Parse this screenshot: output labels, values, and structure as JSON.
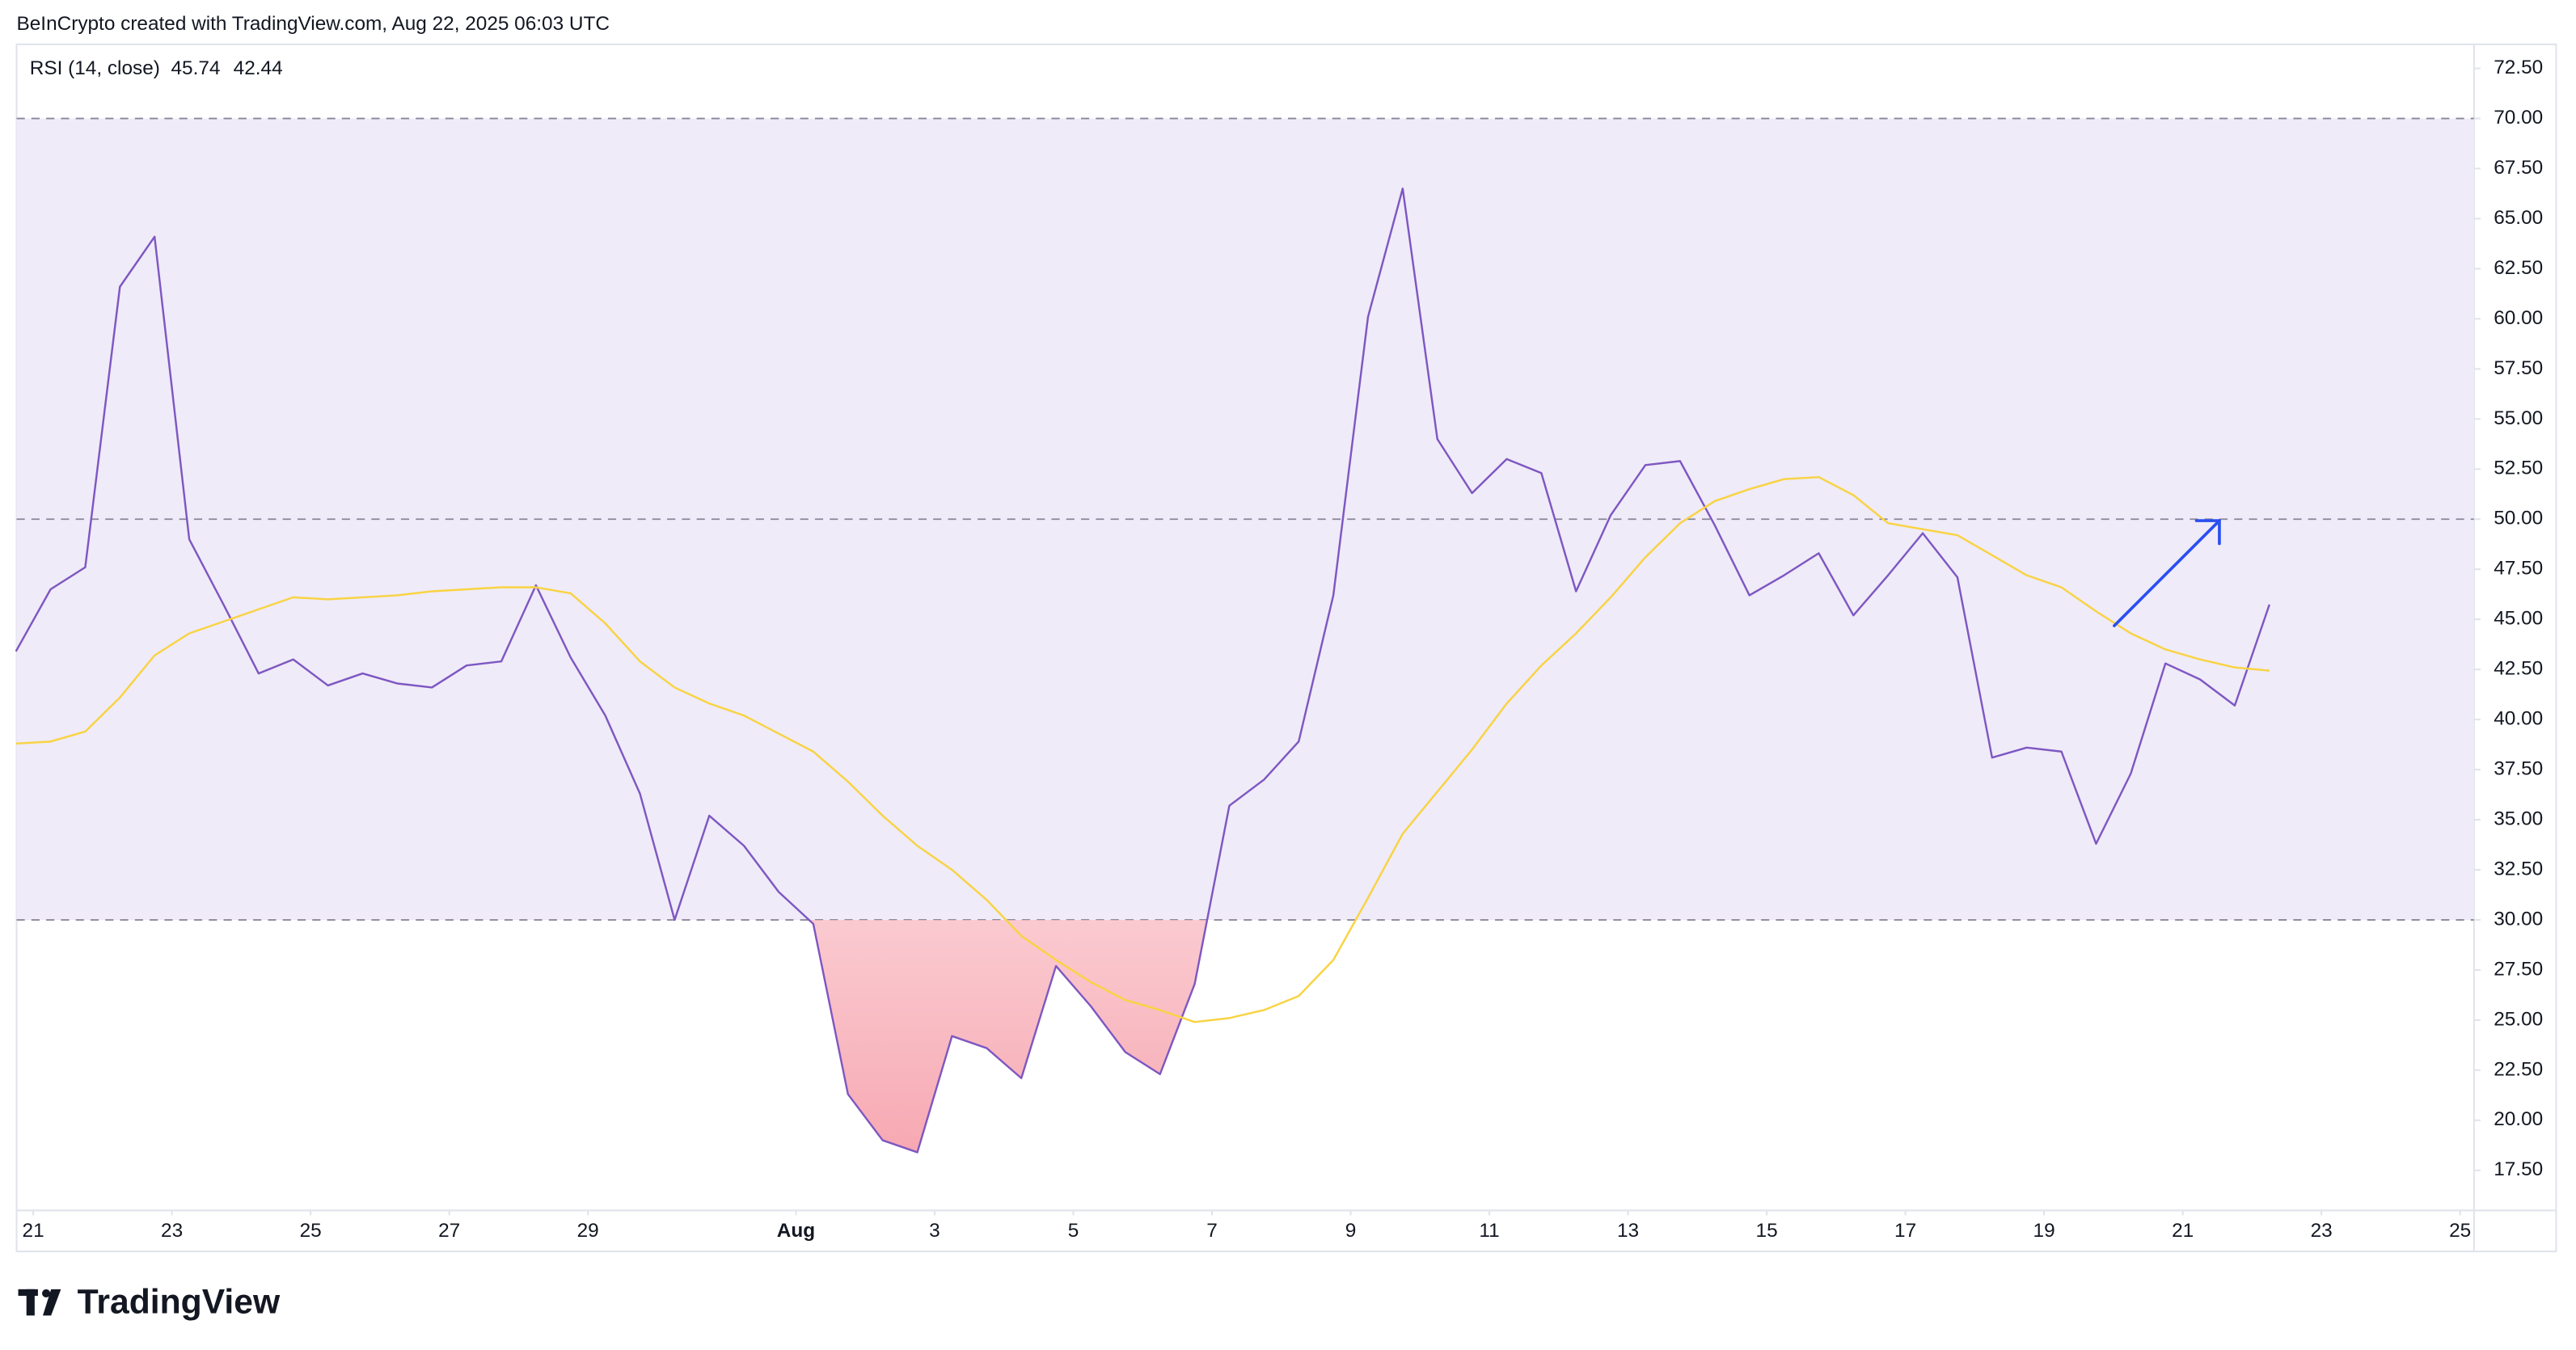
{
  "header": "BeInCrypto created with TradingView.com, Aug 22, 2025 06:03 UTC",
  "logo": "TradingView",
  "chart_data": {
    "type": "line",
    "legend": {
      "title": "RSI (14, close)",
      "values": [
        "45.74",
        "42.44"
      ]
    },
    "x": [
      20.75,
      21.25,
      21.75,
      22.25,
      22.75,
      23.25,
      23.75,
      24.25,
      24.75,
      25.25,
      25.75,
      26.25,
      26.75,
      27.25,
      27.75,
      28.25,
      28.75,
      29.25,
      29.75,
      30.25,
      30.75,
      31.25,
      31.75,
      32.25,
      32.75,
      33.25,
      33.75,
      34.25,
      34.75,
      35.25,
      35.75,
      36.25,
      36.75,
      37.25,
      37.75,
      38.25,
      38.75,
      39.25,
      39.75,
      40.25,
      40.75,
      41.25,
      41.75,
      42.25,
      42.75,
      43.25,
      43.75,
      44.25,
      44.75,
      45.25,
      45.75,
      46.25,
      46.75,
      47.25,
      47.75,
      48.25,
      48.75,
      49.25,
      49.75,
      50.25,
      50.75,
      51.25,
      51.75,
      52.25,
      52.75,
      53.25
    ],
    "series": [
      {
        "color": "#7e57c2",
        "values": [
          43.4,
          46.5,
          47.6,
          61.6,
          64.1,
          49.0,
          45.7,
          42.3,
          43.0,
          41.7,
          42.3,
          41.8,
          41.6,
          42.7,
          42.9,
          46.7,
          43.1,
          40.2,
          36.3,
          30.0,
          35.2,
          33.7,
          31.4,
          29.8,
          21.3,
          19.0,
          18.4,
          24.2,
          23.6,
          22.1,
          27.7,
          25.7,
          23.4,
          22.3,
          26.8,
          35.7,
          37.0,
          38.9,
          46.2,
          60.1,
          66.5,
          54.0,
          51.3,
          53.0,
          52.3,
          46.4,
          50.2,
          52.7,
          52.9,
          49.7,
          46.2,
          47.2,
          48.3,
          45.2,
          47.2,
          49.3,
          47.1,
          38.1,
          38.6,
          38.4,
          33.8,
          37.3,
          42.8,
          42.0,
          40.7,
          45.74
        ]
      },
      {
        "color": "#f9d342",
        "values": [
          38.8,
          38.9,
          39.4,
          41.1,
          43.2,
          44.3,
          44.9,
          45.5,
          46.1,
          46.0,
          46.1,
          46.2,
          46.4,
          46.5,
          46.6,
          46.6,
          46.3,
          44.8,
          42.9,
          41.6,
          40.8,
          40.2,
          39.3,
          38.4,
          36.9,
          35.2,
          33.7,
          32.5,
          31.0,
          29.2,
          28.0,
          26.9,
          26.0,
          25.5,
          24.9,
          25.1,
          25.5,
          26.2,
          28.0,
          31.1,
          34.3,
          36.4,
          38.5,
          40.8,
          42.7,
          44.3,
          46.1,
          48.1,
          49.8,
          50.9,
          51.5,
          52.0,
          52.1,
          51.2,
          49.8,
          49.5,
          49.2,
          48.2,
          47.2,
          46.6,
          45.4,
          44.3,
          43.5,
          43.0,
          42.6,
          42.44
        ]
      }
    ],
    "bands": [
      70,
      50,
      30
    ],
    "band_fill": "#efebf8",
    "oversold_fill": "#f8bcc4",
    "xlim": [
      20.76,
      56.2
    ],
    "ylim": [
      15.5,
      73.7
    ],
    "xticks": [
      {
        "value": 21,
        "label": "21"
      },
      {
        "value": 23,
        "label": "23"
      },
      {
        "value": 25,
        "label": "25"
      },
      {
        "value": 27,
        "label": "27"
      },
      {
        "value": 29,
        "label": "29"
      },
      {
        "value": 32,
        "label": "Aug"
      },
      {
        "value": 34,
        "label": "3"
      },
      {
        "value": 36,
        "label": "5"
      },
      {
        "value": 38,
        "label": "7"
      },
      {
        "value": 40,
        "label": "9"
      },
      {
        "value": 42,
        "label": "11"
      },
      {
        "value": 44,
        "label": "13"
      },
      {
        "value": 46,
        "label": "15"
      },
      {
        "value": 48,
        "label": "17"
      },
      {
        "value": 50,
        "label": "19"
      },
      {
        "value": 52,
        "label": "21"
      },
      {
        "value": 54,
        "label": "23"
      },
      {
        "value": 56,
        "label": "25"
      }
    ],
    "yticks": [
      {
        "value": 17.5,
        "label": "17.50"
      },
      {
        "value": 20,
        "label": "20.00"
      },
      {
        "value": 22.5,
        "label": "22.50"
      },
      {
        "value": 25,
        "label": "25.00"
      },
      {
        "value": 27.5,
        "label": "27.50"
      },
      {
        "value": 30,
        "label": "30.00"
      },
      {
        "value": 32.5,
        "label": "32.50"
      },
      {
        "value": 35,
        "label": "35.00"
      },
      {
        "value": 37.5,
        "label": "37.50"
      },
      {
        "value": 40,
        "label": "40.00"
      },
      {
        "value": 42.5,
        "label": "42.50"
      },
      {
        "value": 45,
        "label": "45.00"
      },
      {
        "value": 47.5,
        "label": "47.50"
      },
      {
        "value": 50,
        "label": "50.00"
      },
      {
        "value": 52.5,
        "label": "52.50"
      },
      {
        "value": 55,
        "label": "55.00"
      },
      {
        "value": 57.5,
        "label": "57.50"
      },
      {
        "value": 60,
        "label": "60.00"
      },
      {
        "value": 62.5,
        "label": "62.50"
      },
      {
        "value": 65,
        "label": "65.00"
      },
      {
        "value": 67.5,
        "label": "67.50"
      },
      {
        "value": 70,
        "label": "70.00"
      },
      {
        "value": 72.5,
        "label": "72.50"
      }
    ]
  }
}
